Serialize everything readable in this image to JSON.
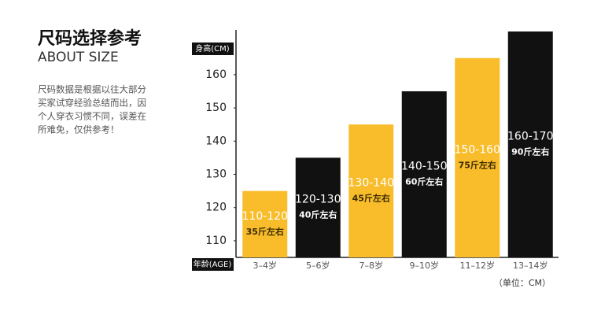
{
  "side": {
    "title": "尺码选择参考",
    "subtitle": "ABOUT SIZE",
    "description": [
      "尺码数据是根据以往大部分",
      "买家试穿经验总结而出，因",
      "个人穿衣习惯不同，误差在",
      "所难免，仅供参考！"
    ]
  },
  "chart_data": {
    "type": "bar",
    "y_label": "身高(CM)",
    "x_label": "年龄(AGE)",
    "unit_note": "（单位：CM）",
    "categories": [
      "3–4岁",
      "5–6岁",
      "7–8岁",
      "9–10岁",
      "11–12岁",
      "13–14岁"
    ],
    "values": [
      125,
      135,
      145,
      155,
      165,
      173
    ],
    "colors": [
      "#f9bd2b",
      "#111111",
      "#f9bd2b",
      "#111111",
      "#f9bd2b",
      "#111111"
    ],
    "bar_labels": [
      {
        "range": "110-120",
        "weight": "35斤左右"
      },
      {
        "range": "120-130",
        "weight": "40斤左右"
      },
      {
        "range": "130-140",
        "weight": "45斤左右"
      },
      {
        "range": "140-150",
        "weight": "60斤左右"
      },
      {
        "range": "150-160",
        "weight": "75斤左右"
      },
      {
        "range": "160-170",
        "weight": "90斤左右"
      }
    ],
    "ylim": [
      105,
      173
    ],
    "yticks": [
      110,
      120,
      130,
      140,
      150,
      160
    ]
  }
}
